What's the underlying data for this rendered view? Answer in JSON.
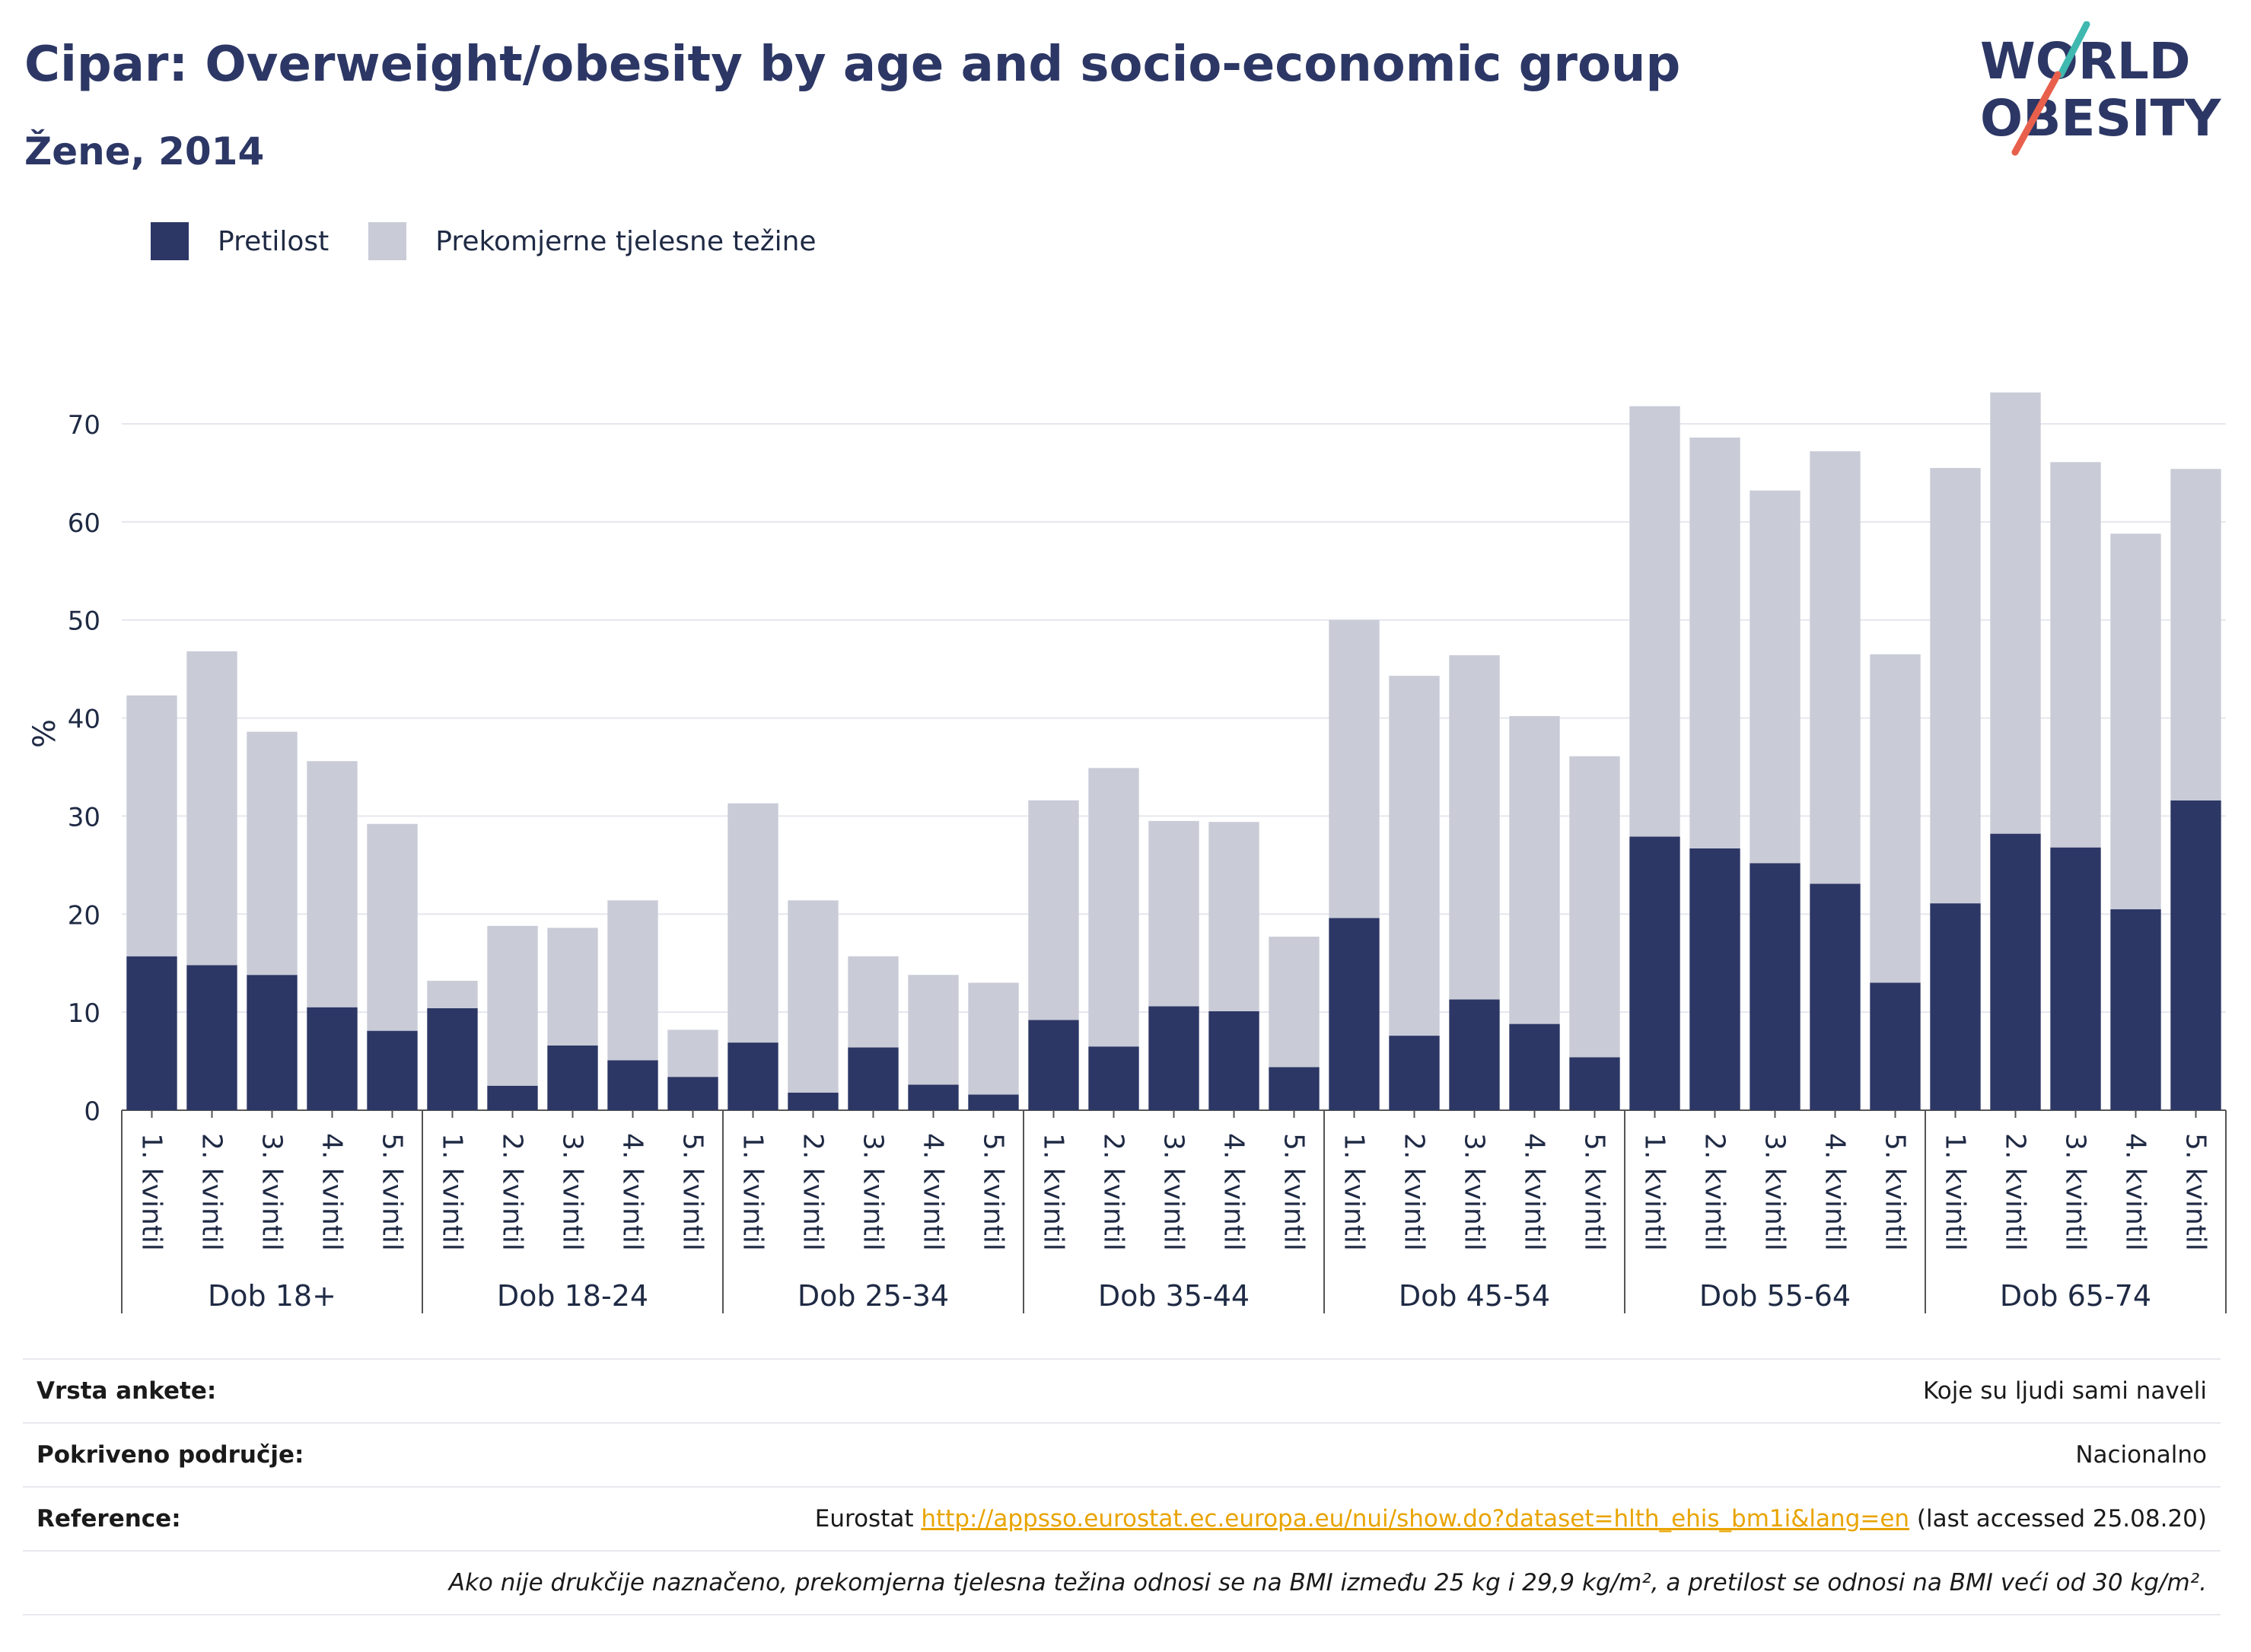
{
  "header": {
    "title": "Cipar: Overweight/obesity by age and socio-economic group",
    "subtitle": "Žene, 2014",
    "logo_line1": "WORLD",
    "logo_line2": "OBESITY"
  },
  "legend": {
    "obesity_label": "Pretilost",
    "overweight_label": "Prekomjerne tjelesne težine"
  },
  "colors": {
    "obesity": "#2c3765",
    "overweight": "#c9cbd7",
    "grid": "#e6e7ee",
    "logo_accent_teal": "#3fb8b0",
    "logo_accent_red": "#e8604c"
  },
  "chart_data": {
    "type": "bar",
    "stacked": true,
    "ylabel": "%",
    "ylim": [
      0,
      75
    ],
    "yticks": [
      0,
      10,
      20,
      30,
      40,
      50,
      60,
      70
    ],
    "grid": true,
    "legend_position": "top-left",
    "groups": [
      "Dob 18+",
      "Dob 18-24",
      "Dob 25-34",
      "Dob 35-44",
      "Dob 45-54",
      "Dob 55-64",
      "Dob 65-74"
    ],
    "categories": [
      "1. kvintil",
      "2. kvintil",
      "3. kvintil",
      "4. kvintil",
      "5. kvintil"
    ],
    "series": [
      {
        "name": "Pretilost",
        "values": [
          [
            15.7,
            14.8,
            13.8,
            10.5,
            8.1
          ],
          [
            10.4,
            2.5,
            6.6,
            5.1,
            3.4
          ],
          [
            6.9,
            1.8,
            6.4,
            2.6,
            1.6
          ],
          [
            9.2,
            6.5,
            10.6,
            10.1,
            4.4
          ],
          [
            19.6,
            7.6,
            11.3,
            8.8,
            5.4
          ],
          [
            27.9,
            26.7,
            25.2,
            23.1,
            13.0
          ],
          [
            21.1,
            28.2,
            26.8,
            20.5,
            31.6
          ]
        ]
      },
      {
        "name": "Prekomjerne tjelesne težine",
        "values": [
          [
            26.6,
            32.0,
            24.8,
            25.1,
            21.1
          ],
          [
            2.8,
            16.3,
            12.0,
            16.3,
            4.8
          ],
          [
            24.4,
            19.6,
            9.3,
            11.2,
            11.4
          ],
          [
            22.4,
            28.4,
            18.9,
            19.3,
            13.3
          ],
          [
            30.4,
            36.7,
            35.1,
            31.4,
            30.7
          ],
          [
            43.9,
            41.9,
            38.0,
            44.1,
            33.5
          ],
          [
            44.4,
            45.0,
            39.3,
            38.3,
            33.8
          ]
        ]
      }
    ]
  },
  "info_table": {
    "survey_type_label": "Vrsta ankete:",
    "survey_type_value": "Koje su ljudi sami naveli",
    "coverage_label": "Pokriveno područje:",
    "coverage_value": "Nacionalno",
    "reference_label": "Reference:",
    "reference_prefix": "Eurostat",
    "reference_url": "http://appsso.eurostat.ec.europa.eu/nui/show.do?dataset=hlth_ehis_bm1i&lang=en",
    "reference_suffix": "(last accessed 25.08.20)",
    "note": "Ako nije drukčije naznačeno, prekomjerna tjelesna težina odnosi se na BMI između 25 kg i 29,9 kg/m², a pretilost se odnosi na BMI veći od 30 kg/m²."
  }
}
